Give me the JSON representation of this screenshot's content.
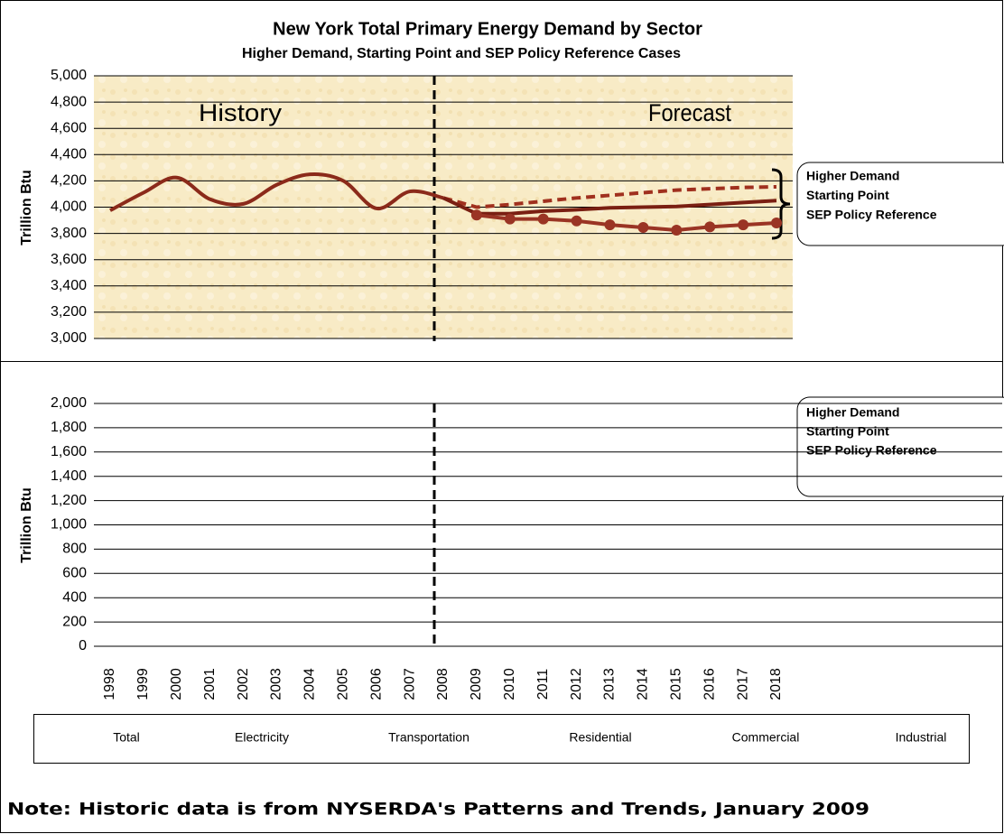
{
  "chart_data": [
    {
      "type": "line",
      "title": "New York Total Primary Energy Demand by Sector",
      "subtitle": "Higher Demand, Starting Point and SEP Policy Reference Cases",
      "ylabel": "Trillion Btu",
      "annotations": [
        "History",
        "Forecast"
      ],
      "categories": [
        "1998",
        "1999",
        "2000",
        "2001",
        "2002",
        "2003",
        "2004",
        "2005",
        "2006",
        "2007",
        "2008",
        "2009",
        "2010",
        "2011",
        "2012",
        "2013",
        "2014",
        "2015",
        "2016",
        "2017",
        "2018"
      ],
      "ylim": [
        3000,
        5000
      ],
      "yticks": [
        {
          "value": 3000,
          "label": "3,000"
        },
        {
          "value": 3200,
          "label": "3,200"
        },
        {
          "value": 3400,
          "label": "3,400"
        },
        {
          "value": 3600,
          "label": "3,600"
        },
        {
          "value": 3800,
          "label": "3,800"
        },
        {
          "value": 4000,
          "label": "4,000"
        },
        {
          "value": 4200,
          "label": "4,200"
        },
        {
          "value": 4400,
          "label": "4,400"
        },
        {
          "value": 4600,
          "label": "4,600"
        },
        {
          "value": 4800,
          "label": "4,800"
        },
        {
          "value": 5000,
          "label": "5,000"
        }
      ],
      "grid": true,
      "series": [
        {
          "color": "#8b2a1a",
          "style": "smooth",
          "values": [
            3975,
            4110,
            4225,
            4060,
            4025,
            4170,
            4250,
            4200,
            3990,
            4120,
            4070,
            null,
            null,
            null,
            null,
            null,
            null,
            null,
            null,
            null,
            null
          ]
        },
        {
          "name": "Higher Demand",
          "color": "#a0301e",
          "style": "dashed",
          "values": [
            null,
            null,
            null,
            null,
            null,
            null,
            null,
            null,
            null,
            null,
            4070,
            4000,
            4020,
            4045,
            4070,
            4090,
            4110,
            4130,
            4140,
            4150,
            4155
          ]
        },
        {
          "name": "Starting Point",
          "color": "#7a1f12",
          "style": "solid",
          "values": [
            null,
            null,
            null,
            null,
            null,
            null,
            null,
            null,
            null,
            null,
            4070,
            3950,
            3950,
            3970,
            3980,
            3995,
            4000,
            4005,
            4020,
            4035,
            4050
          ]
        },
        {
          "name": "SEP Policy Reference",
          "color": "#9a3424",
          "style": "markers",
          "values": [
            null,
            null,
            null,
            null,
            null,
            null,
            null,
            null,
            null,
            null,
            null,
            3940,
            3910,
            3910,
            3895,
            3865,
            3845,
            3825,
            3850,
            3865,
            3880
          ]
        }
      ]
    },
    {
      "type": "line",
      "ylabel": "Trillion Btu",
      "categories": [
        "1998",
        "1999",
        "2000",
        "2001",
        "2002",
        "2003",
        "2004",
        "2005",
        "2006",
        "2007",
        "2008",
        "2009",
        "2010",
        "2011",
        "2012",
        "2013",
        "2014",
        "2015",
        "2016",
        "2017",
        "2018"
      ],
      "ylim": [
        0,
        2000
      ],
      "yticks": [
        0,
        200,
        400,
        600,
        800,
        {
          "value": 1000,
          "label": "1,000"
        },
        {
          "value": 1200,
          "label": "1,200"
        },
        {
          "value": 1400,
          "label": "1,400"
        },
        {
          "value": 1600,
          "label": "1,600"
        },
        {
          "value": 1800,
          "label": "1,800"
        },
        {
          "value": 2000,
          "label": "2,000"
        }
      ],
      "grid": true,
      "callout_labels": [
        "Higher Demand",
        "Starting Point",
        "SEP Policy Reference"
      ],
      "legend": [
        "Total",
        "Electricity",
        "Transportation",
        "Residential",
        "Commercial",
        "Industrial"
      ],
      "series": []
    }
  ],
  "note": "Note: Historic data is from NYSERDA's Patterns and Trends, January 2009"
}
